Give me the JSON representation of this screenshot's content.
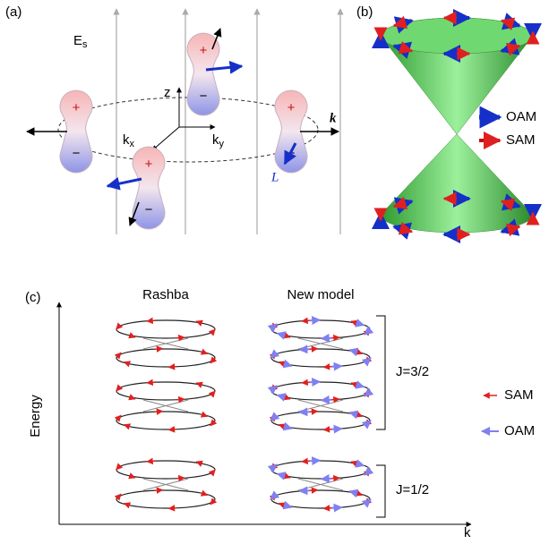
{
  "panel_a": {
    "label": "(a)",
    "field_label": "E",
    "field_subscript": "s",
    "axis_z": "z",
    "axis_k": "k",
    "axis_x_sub": "x",
    "axis_y_sub": "y",
    "wave_vector": "k",
    "oam_vector": "L",
    "plus": "+",
    "minus": "−"
  },
  "panel_b": {
    "label": "(b)",
    "legend": [
      "OAM",
      "SAM"
    ]
  },
  "panel_c": {
    "label": "(c)",
    "columns": [
      "Rashba",
      "New model"
    ],
    "groups": [
      "J=3/2",
      "J=1/2"
    ],
    "legend": [
      "SAM",
      "OAM"
    ],
    "y_axis": "Energy",
    "x_axis": "k"
  }
}
